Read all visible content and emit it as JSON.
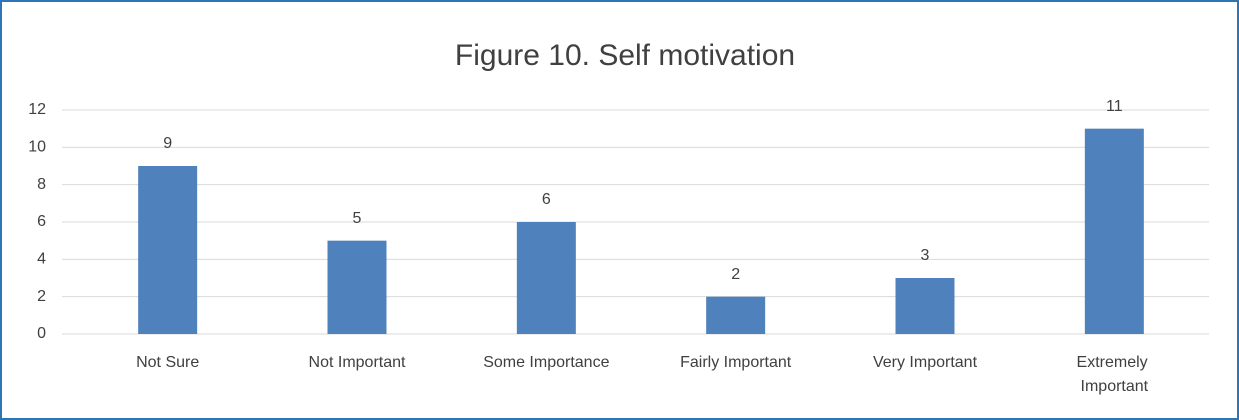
{
  "chart_data": {
    "type": "bar",
    "title": "Figure 10. Self motivation",
    "categories": [
      "Not Sure",
      "Not Important",
      "Some Importance",
      "Fairly Important",
      "Very Important",
      "Extremely Important"
    ],
    "values": [
      9,
      5,
      6,
      2,
      3,
      11
    ],
    "color": "#4f81bd",
    "ylim": [
      0,
      12
    ],
    "yticks": [
      0,
      2,
      4,
      6,
      8,
      10,
      12
    ],
    "grid": true
  }
}
